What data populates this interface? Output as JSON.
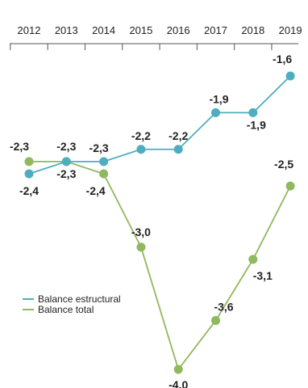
{
  "chart_data": {
    "type": "line",
    "categories": [
      "2012",
      "2013",
      "2014",
      "2015",
      "2016",
      "2017",
      "2018",
      "2019"
    ],
    "series": [
      {
        "name": "Balance estructural",
        "color": "#4fadc0",
        "values": [
          -2.4,
          -2.3,
          -2.3,
          -2.2,
          -2.2,
          -1.9,
          -1.9,
          -1.6
        ],
        "labels": [
          "-2,4",
          "-2,3",
          "-2,3",
          "-2,2",
          "-2,2",
          "-1,9",
          "-1,9",
          "-1,6"
        ]
      },
      {
        "name": "Balance total",
        "color": "#8fb95c",
        "values": [
          -2.3,
          -2.3,
          -2.4,
          -3.0,
          -4.0,
          -3.6,
          -3.1,
          -2.5
        ],
        "labels": [
          "-2,3",
          "-2,3",
          "-2,4",
          "-3,0",
          "-4,0",
          "-3,6",
          "-3,1",
          "-2,5"
        ]
      }
    ],
    "ylim": [
      -4.0,
      -1.6
    ],
    "xaxis_position": "top",
    "legend_position": "bottom-left",
    "grid": false
  }
}
